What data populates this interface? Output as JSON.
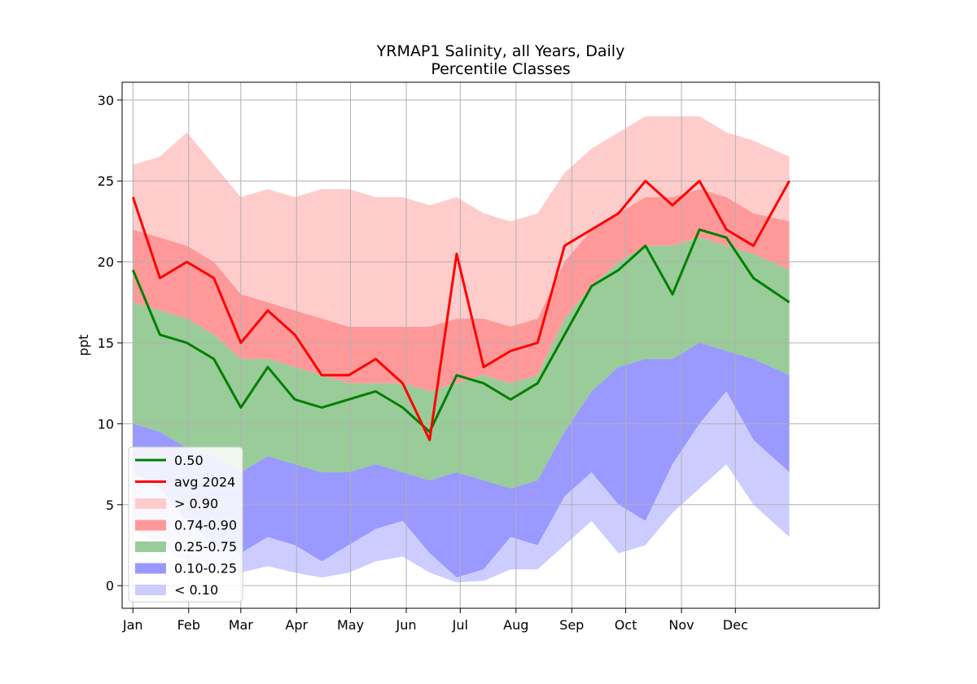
{
  "chart_data": {
    "type": "area",
    "title": "YRMAP1 Salinity, all Years, Daily",
    "subtitle": "Percentile Classes",
    "xlabel": "",
    "ylabel": "ppt",
    "x_unit": "day of year",
    "xlim": [
      -6,
      415
    ],
    "ylim": [
      -1.4,
      31.1
    ],
    "grid": true,
    "legend_position": "lower-left",
    "x_ticks": [
      {
        "label": "Jan",
        "day": 0
      },
      {
        "label": "Feb",
        "day": 31
      },
      {
        "label": "Mar",
        "day": 60
      },
      {
        "label": "Apr",
        "day": 91
      },
      {
        "label": "May",
        "day": 121
      },
      {
        "label": "Jun",
        "day": 152
      },
      {
        "label": "Jul",
        "day": 182
      },
      {
        "label": "Aug",
        "day": 213
      },
      {
        "label": "Sep",
        "day": 244
      },
      {
        "label": "Oct",
        "day": 274
      },
      {
        "label": "Nov",
        "day": 305
      },
      {
        "label": "Dec",
        "day": 335
      }
    ],
    "y_ticks": [
      0,
      5,
      10,
      15,
      20,
      25,
      30
    ],
    "x": [
      0,
      15,
      30,
      45,
      60,
      75,
      90,
      105,
      120,
      135,
      150,
      165,
      180,
      195,
      210,
      225,
      240,
      255,
      270,
      285,
      300,
      315,
      330,
      345,
      365
    ],
    "series": [
      {
        "name": "0.50",
        "kind": "line",
        "color": "#008000",
        "values": [
          19.5,
          15.5,
          15.0,
          14.0,
          11.0,
          13.5,
          11.5,
          11.0,
          11.5,
          12.0,
          11.0,
          9.5,
          13.0,
          12.5,
          11.5,
          12.5,
          15.5,
          18.5,
          19.5,
          21.0,
          18.0,
          22.0,
          21.5,
          19.0,
          17.5
        ]
      },
      {
        "name": "avg 2024",
        "kind": "line",
        "color": "#ff0000",
        "values": [
          24.0,
          19.0,
          20.0,
          19.0,
          15.0,
          17.0,
          15.5,
          13.0,
          13.0,
          14.0,
          12.5,
          9.0,
          20.5,
          13.5,
          14.5,
          15.0,
          21.0,
          22.0,
          23.0,
          25.0,
          23.5,
          25.0,
          22.0,
          21.0,
          25.0
        ]
      },
      {
        "name": "> 0.90",
        "kind": "band",
        "color": "#ffcccc",
        "lower": [
          22.0,
          21.5,
          21.0,
          20.0,
          18.0,
          17.5,
          17.0,
          16.5,
          16.0,
          16.0,
          16.0,
          16.0,
          16.5,
          16.5,
          16.0,
          16.5,
          20.0,
          22.0,
          23.0,
          24.0,
          24.0,
          24.5,
          24.0,
          23.0,
          22.5
        ],
        "upper": [
          26.0,
          26.5,
          28.0,
          26.0,
          24.0,
          24.5,
          24.0,
          24.5,
          24.5,
          24.0,
          24.0,
          23.5,
          24.0,
          23.0,
          22.5,
          23.0,
          25.5,
          27.0,
          28.0,
          29.0,
          29.0,
          29.0,
          28.0,
          27.5,
          26.5
        ]
      },
      {
        "name": "0.74-0.90",
        "kind": "band",
        "color": "#ff9999",
        "lower": [
          17.5,
          17.0,
          16.5,
          15.5,
          14.0,
          14.0,
          13.5,
          13.0,
          12.5,
          12.5,
          12.5,
          12.0,
          12.5,
          13.0,
          12.5,
          13.0,
          16.5,
          18.5,
          20.0,
          21.0,
          21.0,
          21.5,
          21.0,
          20.5,
          19.5
        ],
        "upper": [
          22.0,
          21.5,
          21.0,
          20.0,
          18.0,
          17.5,
          17.0,
          16.5,
          16.0,
          16.0,
          16.0,
          16.0,
          16.5,
          16.5,
          16.0,
          16.5,
          20.0,
          22.0,
          23.0,
          24.0,
          24.0,
          24.5,
          24.0,
          23.0,
          22.5
        ]
      },
      {
        "name": "0.25-0.75",
        "kind": "band",
        "color": "#99cc99",
        "lower": [
          10.0,
          9.5,
          8.5,
          8.0,
          7.0,
          8.0,
          7.5,
          7.0,
          7.0,
          7.5,
          7.0,
          6.5,
          7.0,
          6.5,
          6.0,
          6.5,
          9.5,
          12.0,
          13.5,
          14.0,
          14.0,
          15.0,
          14.5,
          14.0,
          13.0
        ],
        "upper": [
          17.5,
          17.0,
          16.5,
          15.5,
          14.0,
          14.0,
          13.5,
          13.0,
          12.5,
          12.5,
          12.5,
          12.0,
          12.5,
          13.0,
          12.5,
          13.0,
          16.5,
          18.5,
          20.0,
          21.0,
          21.0,
          21.5,
          21.0,
          20.5,
          19.5
        ]
      },
      {
        "name": "0.10-0.25",
        "kind": "band",
        "color": "#9999ff",
        "lower": [
          7.0,
          6.0,
          4.0,
          2.5,
          2.0,
          3.0,
          2.5,
          1.5,
          2.5,
          3.5,
          4.0,
          2.0,
          0.5,
          1.0,
          3.0,
          2.5,
          5.5,
          7.0,
          5.0,
          4.0,
          7.5,
          10.0,
          12.0,
          9.0,
          7.0
        ],
        "upper": [
          10.0,
          9.5,
          8.5,
          8.0,
          7.0,
          8.0,
          7.5,
          7.0,
          7.0,
          7.5,
          7.0,
          6.5,
          7.0,
          6.5,
          6.0,
          6.5,
          9.5,
          12.0,
          13.5,
          14.0,
          14.0,
          15.0,
          14.5,
          14.0,
          13.0
        ]
      },
      {
        "name": "< 0.10",
        "kind": "band",
        "color": "#ccccff",
        "lower": [
          3.5,
          2.5,
          1.5,
          1.0,
          0.8,
          1.2,
          0.8,
          0.5,
          0.8,
          1.5,
          1.8,
          0.8,
          0.2,
          0.3,
          1.0,
          1.0,
          2.5,
          4.0,
          2.0,
          2.5,
          4.5,
          6.0,
          7.5,
          5.0,
          3.0
        ],
        "upper": [
          7.0,
          6.0,
          4.0,
          2.5,
          2.0,
          3.0,
          2.5,
          1.5,
          2.5,
          3.5,
          4.0,
          2.0,
          0.5,
          1.0,
          3.0,
          2.5,
          5.5,
          7.0,
          5.0,
          4.0,
          7.5,
          10.0,
          12.0,
          9.0,
          7.0
        ]
      }
    ],
    "legend": [
      {
        "label": "0.50",
        "symbol": "line",
        "color": "#008000"
      },
      {
        "label": "avg 2024",
        "symbol": "line",
        "color": "#ff0000"
      },
      {
        "label": "> 0.90",
        "symbol": "patch",
        "color": "#ffcccc"
      },
      {
        "label": "0.74-0.90",
        "symbol": "patch",
        "color": "#ff9999"
      },
      {
        "label": "0.25-0.75",
        "symbol": "patch",
        "color": "#99cc99"
      },
      {
        "label": "0.10-0.25",
        "symbol": "patch",
        "color": "#9999ff"
      },
      {
        "label": "< 0.10",
        "symbol": "patch",
        "color": "#ccccff"
      }
    ]
  }
}
